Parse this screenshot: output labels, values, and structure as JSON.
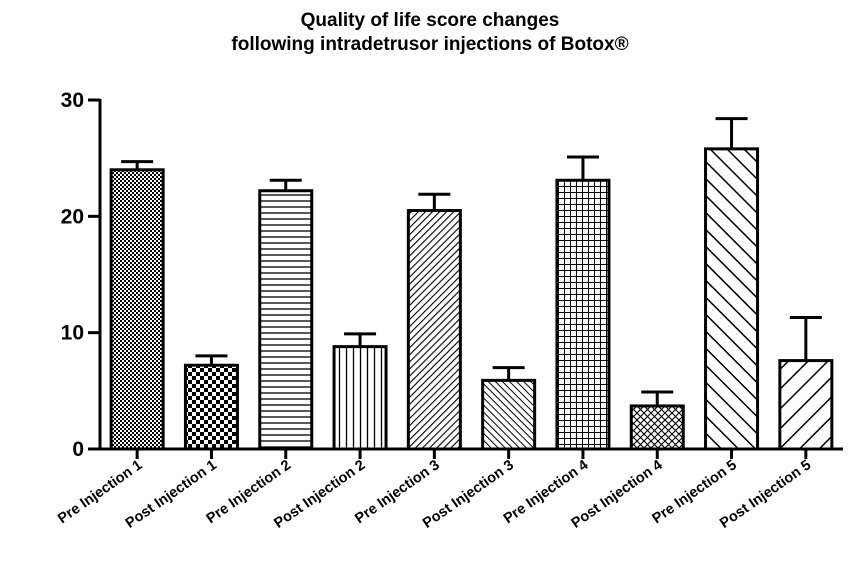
{
  "chart_data": {
    "type": "bar",
    "title_lines": [
      "Quality of life score changes",
      "following intradetrusor injections of Botox®"
    ],
    "xlabel": "",
    "ylabel": "",
    "ylim": [
      0,
      30
    ],
    "yticks": [
      0,
      10,
      20,
      30
    ],
    "grid": false,
    "categories": [
      "Pre Injection 1",
      "Post Injection 1",
      "Pre Injection 2",
      "Post Injection 2",
      "Pre Injection 3",
      "Post Injection 3",
      "Pre Injection 4",
      "Post Injection 4",
      "Pre Injection 5",
      "Post Injection 5"
    ],
    "values": [
      24.0,
      7.2,
      22.2,
      8.8,
      20.5,
      5.9,
      23.1,
      3.7,
      25.8,
      7.6
    ],
    "error_upper": [
      0.7,
      0.8,
      0.9,
      1.1,
      1.4,
      1.1,
      2.0,
      1.2,
      2.6,
      3.7
    ],
    "patterns": [
      "dots",
      "checker",
      "hlines",
      "vlines",
      "diag-fine",
      "diag-back",
      "grid",
      "diag-cross",
      "diag-wide",
      "diag-wide-fwd"
    ]
  }
}
